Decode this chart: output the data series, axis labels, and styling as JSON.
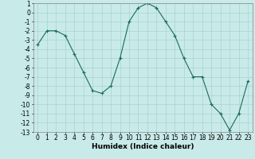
{
  "x": [
    0,
    1,
    2,
    3,
    4,
    5,
    6,
    7,
    8,
    9,
    10,
    11,
    12,
    13,
    14,
    15,
    16,
    17,
    18,
    19,
    20,
    21,
    22,
    23
  ],
  "y": [
    -3.5,
    -2.0,
    -2.0,
    -2.5,
    -4.5,
    -6.5,
    -8.5,
    -8.8,
    -8.0,
    -5.0,
    -1.0,
    0.5,
    1.0,
    0.5,
    -1.0,
    -2.5,
    -5.0,
    -7.0,
    -7.0,
    -10.0,
    -11.0,
    -12.8,
    -11.0,
    -7.5
  ],
  "xlabel": "Humidex (Indice chaleur)",
  "xlim": [
    -0.5,
    23.5
  ],
  "ylim": [
    -13,
    1
  ],
  "yticks": [
    1,
    0,
    -1,
    -2,
    -3,
    -4,
    -5,
    -6,
    -7,
    -8,
    -9,
    -10,
    -11,
    -12,
    -13
  ],
  "xticks": [
    0,
    1,
    2,
    3,
    4,
    5,
    6,
    7,
    8,
    9,
    10,
    11,
    12,
    13,
    14,
    15,
    16,
    17,
    18,
    19,
    20,
    21,
    22,
    23
  ],
  "line_color": "#1a6b5e",
  "marker_color": "#1a6b5e",
  "bg_color": "#c8eae8",
  "grid_color": "#aad4d0",
  "label_fontsize": 6.5,
  "tick_fontsize": 5.5
}
